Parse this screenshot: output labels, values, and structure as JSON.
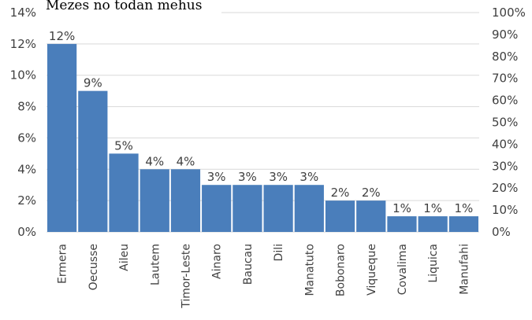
{
  "chart_data": {
    "type": "bar",
    "title": "Mezes no todan mehus",
    "categories": [
      "Ermera",
      "Oecusse",
      "Aileu",
      "Lautem",
      "Timor-Leste",
      "Ainaro",
      "Baucau",
      "Dili",
      "Manatuto",
      "Bobonaro",
      "Viqueque",
      "Covalima",
      "Liquica",
      "Manufahi"
    ],
    "values": [
      12,
      9,
      5,
      4,
      4,
      3,
      3,
      3,
      3,
      2,
      2,
      1,
      1,
      1
    ],
    "data_labels": [
      "12%",
      "9%",
      "5%",
      "4%",
      "4%",
      "3%",
      "3%",
      "3%",
      "3%",
      "2%",
      "2%",
      "1%",
      "1%",
      "1%"
    ],
    "ylim": [
      0,
      14
    ],
    "y_ticks": [
      "0%",
      "2%",
      "4%",
      "6%",
      "8%",
      "10%",
      "12%",
      "14%"
    ],
    "y2lim": [
      0,
      100
    ],
    "y2_ticks": [
      "0%",
      "10%",
      "20%",
      "30%",
      "40%",
      "50%",
      "60%",
      "70%",
      "80%",
      "90%",
      "100%"
    ],
    "colors": {
      "bar": "#4a7ebb",
      "grid": "#d9d9d9"
    },
    "grid": true
  }
}
